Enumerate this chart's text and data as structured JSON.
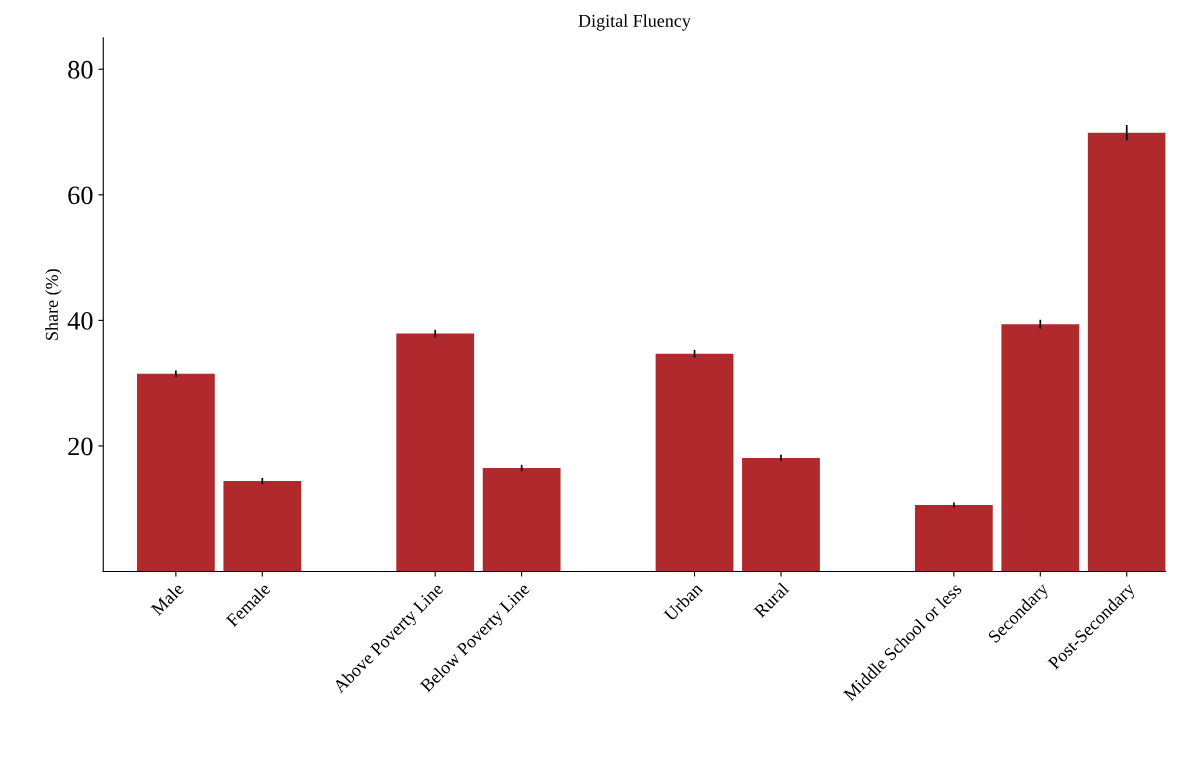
{
  "chart_data": {
    "type": "bar",
    "title": "Digital Fluency",
    "ylabel": "Share (%)",
    "categories": [
      "Male",
      "Female",
      null,
      "Above Poverty Line",
      "Below Poverty Line",
      null,
      "Urban",
      "Rural",
      null,
      "Middle School or less",
      "Secondary",
      "Post-Secondary"
    ],
    "values": [
      31.5,
      14.4,
      null,
      37.9,
      16.5,
      null,
      34.7,
      18.1,
      null,
      10.6,
      39.4,
      69.9
    ],
    "errors": [
      0.5,
      0.5,
      null,
      0.6,
      0.5,
      null,
      0.6,
      0.5,
      null,
      0.4,
      0.7,
      1.2
    ],
    "color": "#b0292c",
    "ylim": [
      0,
      85
    ],
    "yticks": [
      20,
      40,
      60,
      80
    ],
    "grid": false,
    "legend": false
  }
}
